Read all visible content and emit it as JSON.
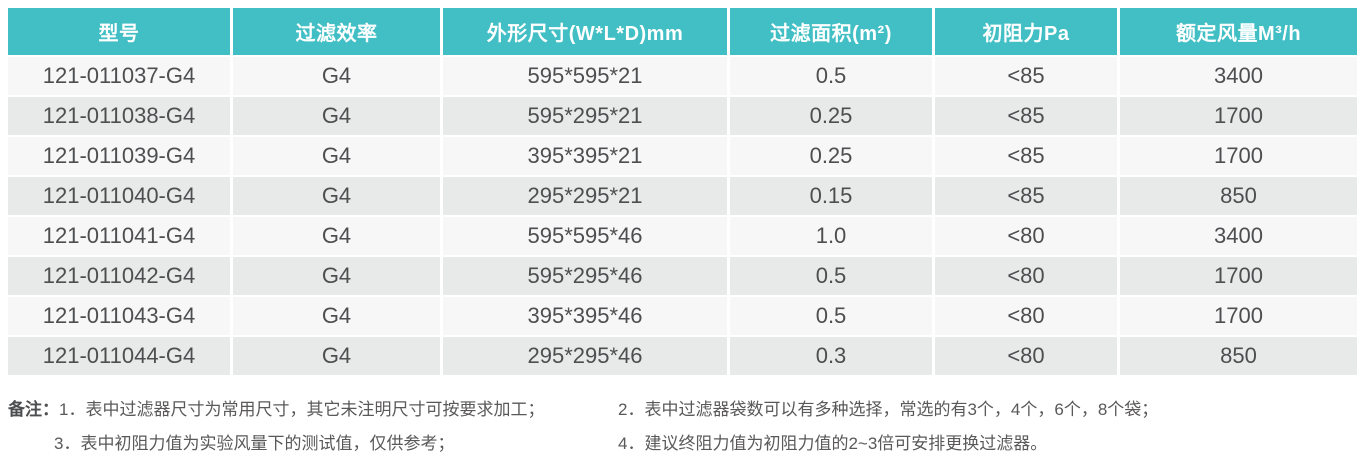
{
  "colors": {
    "header_bg": "#41BFC5",
    "header_text": "#FFFFFF",
    "row_odd_bg": "#F7F7F8",
    "row_even_bg": "#E8E9E9",
    "cell_text": "#4D4E50",
    "note_text": "#5A5858"
  },
  "table": {
    "headers": [
      "型号",
      "过滤效率",
      "外形尺寸(W*L*D)mm",
      "过滤面积(m²)",
      "初阻力Pa",
      "额定风量M³/h"
    ],
    "rows": [
      [
        "121-011037-G4",
        "G4",
        "595*595*21",
        "0.5",
        "<85",
        "3400"
      ],
      [
        "121-011038-G4",
        "G4",
        "595*295*21",
        "0.25",
        "<85",
        "1700"
      ],
      [
        "121-011039-G4",
        "G4",
        "395*395*21",
        "0.25",
        "<85",
        "1700"
      ],
      [
        "121-011040-G4",
        "G4",
        "295*295*21",
        "0.15",
        "<85",
        "850"
      ],
      [
        "121-011041-G4",
        "G4",
        "595*595*46",
        "1.0",
        "<80",
        "3400"
      ],
      [
        "121-011042-G4",
        "G4",
        "595*295*46",
        "0.5",
        "<80",
        "1700"
      ],
      [
        "121-011043-G4",
        "G4",
        "395*395*46",
        "0.5",
        "<80",
        "1700"
      ],
      [
        "121-011044-G4",
        "G4",
        "295*295*46",
        "0.3",
        "<80",
        "850"
      ]
    ]
  },
  "notes": {
    "label": "备注：",
    "note1": "1．表中过滤器尺寸为常用尺寸，其它未注明尺寸可按要求加工；",
    "note2": "2．表中过滤器袋数可以有多种选择，常选的有3个，4个，6个，8个袋；",
    "note3": "3．表中初阻力值为实验风量下的测试值，仅供参考；",
    "note4": "4．建议终阻力值为初阻力值的2~3倍可安排更换过滤器。"
  }
}
